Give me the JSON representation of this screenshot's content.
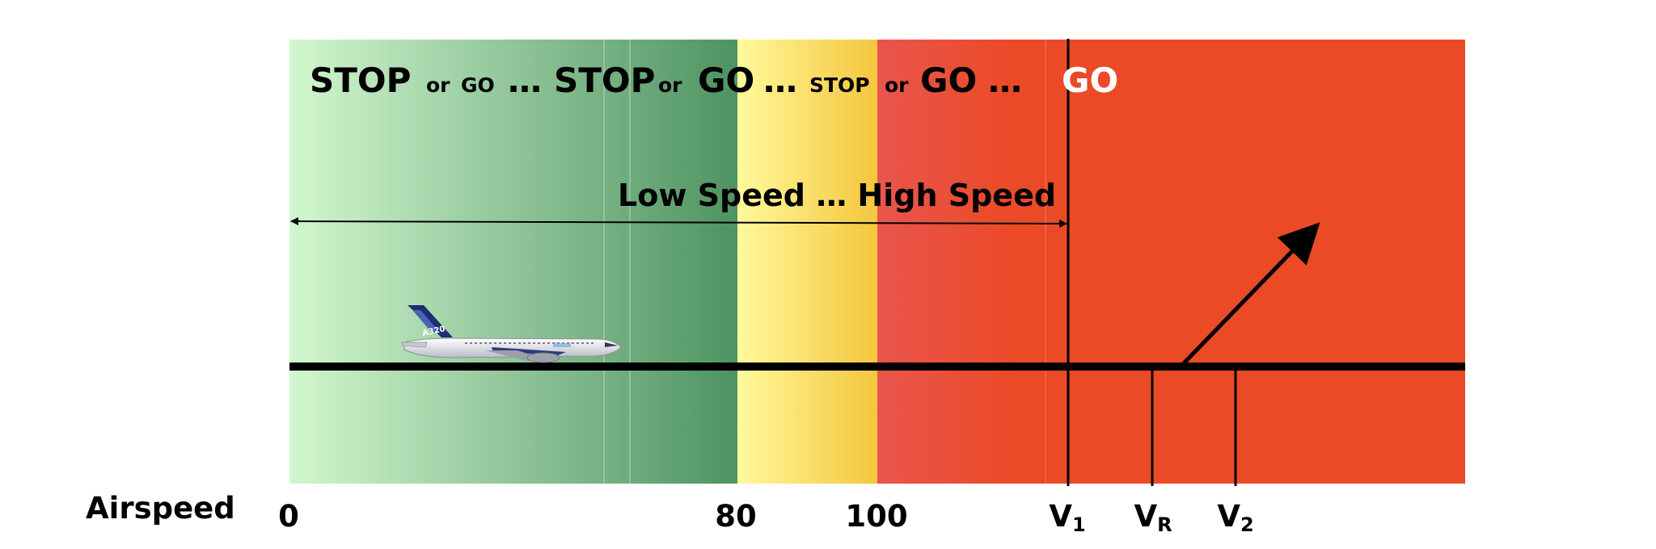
{
  "headline": [
    {
      "text": "STOP",
      "size": "big"
    },
    {
      "text": "or",
      "size": "small"
    },
    {
      "text": "GO",
      "size": "small"
    },
    {
      "text": "…",
      "size": "big"
    },
    {
      "text": "STOP",
      "size": "big"
    },
    {
      "text": "or",
      "size": "small"
    },
    {
      "text": "GO",
      "size": "big"
    },
    {
      "text": "…",
      "size": "big"
    },
    {
      "text": "STOP",
      "size": "small"
    },
    {
      "text": "or",
      "size": "small"
    },
    {
      "text": "GO",
      "size": "big"
    },
    {
      "text": "…",
      "size": "big"
    }
  ],
  "go_label": "GO",
  "speed_label": "Low Speed … High Speed",
  "axis_title": "Airspeed",
  "ticks": {
    "zero": "0",
    "eighty": "80",
    "hundred": "100",
    "v1": {
      "main": "V",
      "sub": "1"
    },
    "vr": {
      "main": "V",
      "sub": "R"
    },
    "v2": {
      "main": "V",
      "sub": "2"
    }
  },
  "aircraft_tail_text": "A320",
  "colors": {
    "green_light": "#d2f7cf",
    "green_dark": "#4e9362",
    "yellow_light": "#fff99c",
    "yellow_dark": "#f4c63c",
    "red_light": "#e9554e",
    "red": "#eb4a27",
    "go_text": "#ffffff"
  }
}
